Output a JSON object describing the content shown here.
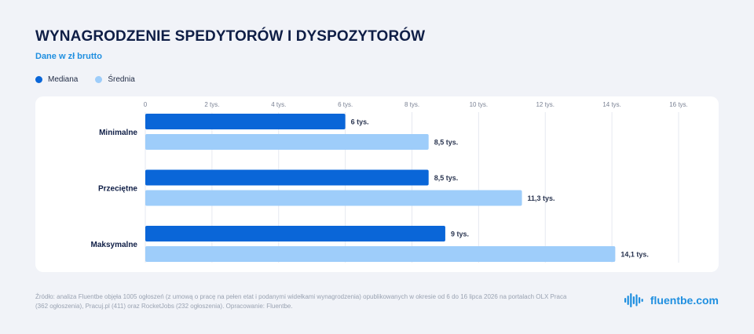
{
  "title": "WYNAGRODZENIE SPEDYTORÓW I DYSPOZYTORÓW",
  "subtitle": "Dane w zł brutto",
  "legend": [
    {
      "label": "Mediana",
      "color": "#0a66d8"
    },
    {
      "label": "Średnia",
      "color": "#9ecdfa"
    }
  ],
  "source": "Źródło: analiza Fluentbe objęła 1005 ogłoszeń (z umową o pracę na pełen etat i podanymi widełkami wynagrodzenia) opublikowanych w okresie od 6 do 16 lipca 2026 na portalach OLX Praca (362 ogłoszenia), Pracuj.pl (411) oraz RocketJobs (232 ogłoszenia). Opracowanie: Fluentbe.",
  "brand": {
    "name": "fluentbe.com",
    "icon": "soundwave-icon"
  },
  "chart_data": {
    "type": "bar",
    "orientation": "horizontal",
    "categories": [
      "Minimalne",
      "Przeciętne",
      "Maksymalne"
    ],
    "series": [
      {
        "name": "Mediana",
        "color": "#0a66d8",
        "values": [
          6000,
          8500,
          9000
        ],
        "labels": [
          "6 tys.",
          "8,5 tys.",
          "9 tys."
        ]
      },
      {
        "name": "Średnia",
        "color": "#9ecdfa",
        "values": [
          8500,
          11300,
          14100
        ],
        "labels": [
          "8,5 tys.",
          "11,3 tys.",
          "14,1 tys."
        ]
      }
    ],
    "xlim": [
      0,
      16000
    ],
    "ticks": [
      0,
      2000,
      4000,
      6000,
      8000,
      10000,
      12000,
      14000,
      16000
    ],
    "tick_labels": [
      "0",
      "2 tys.",
      "4 tys.",
      "6 tys.",
      "8 tys.",
      "10 tys.",
      "12 tys.",
      "14 tys.",
      "16 tys."
    ],
    "grid": true,
    "xaxis_position": "top",
    "legend_position": "top-left"
  }
}
